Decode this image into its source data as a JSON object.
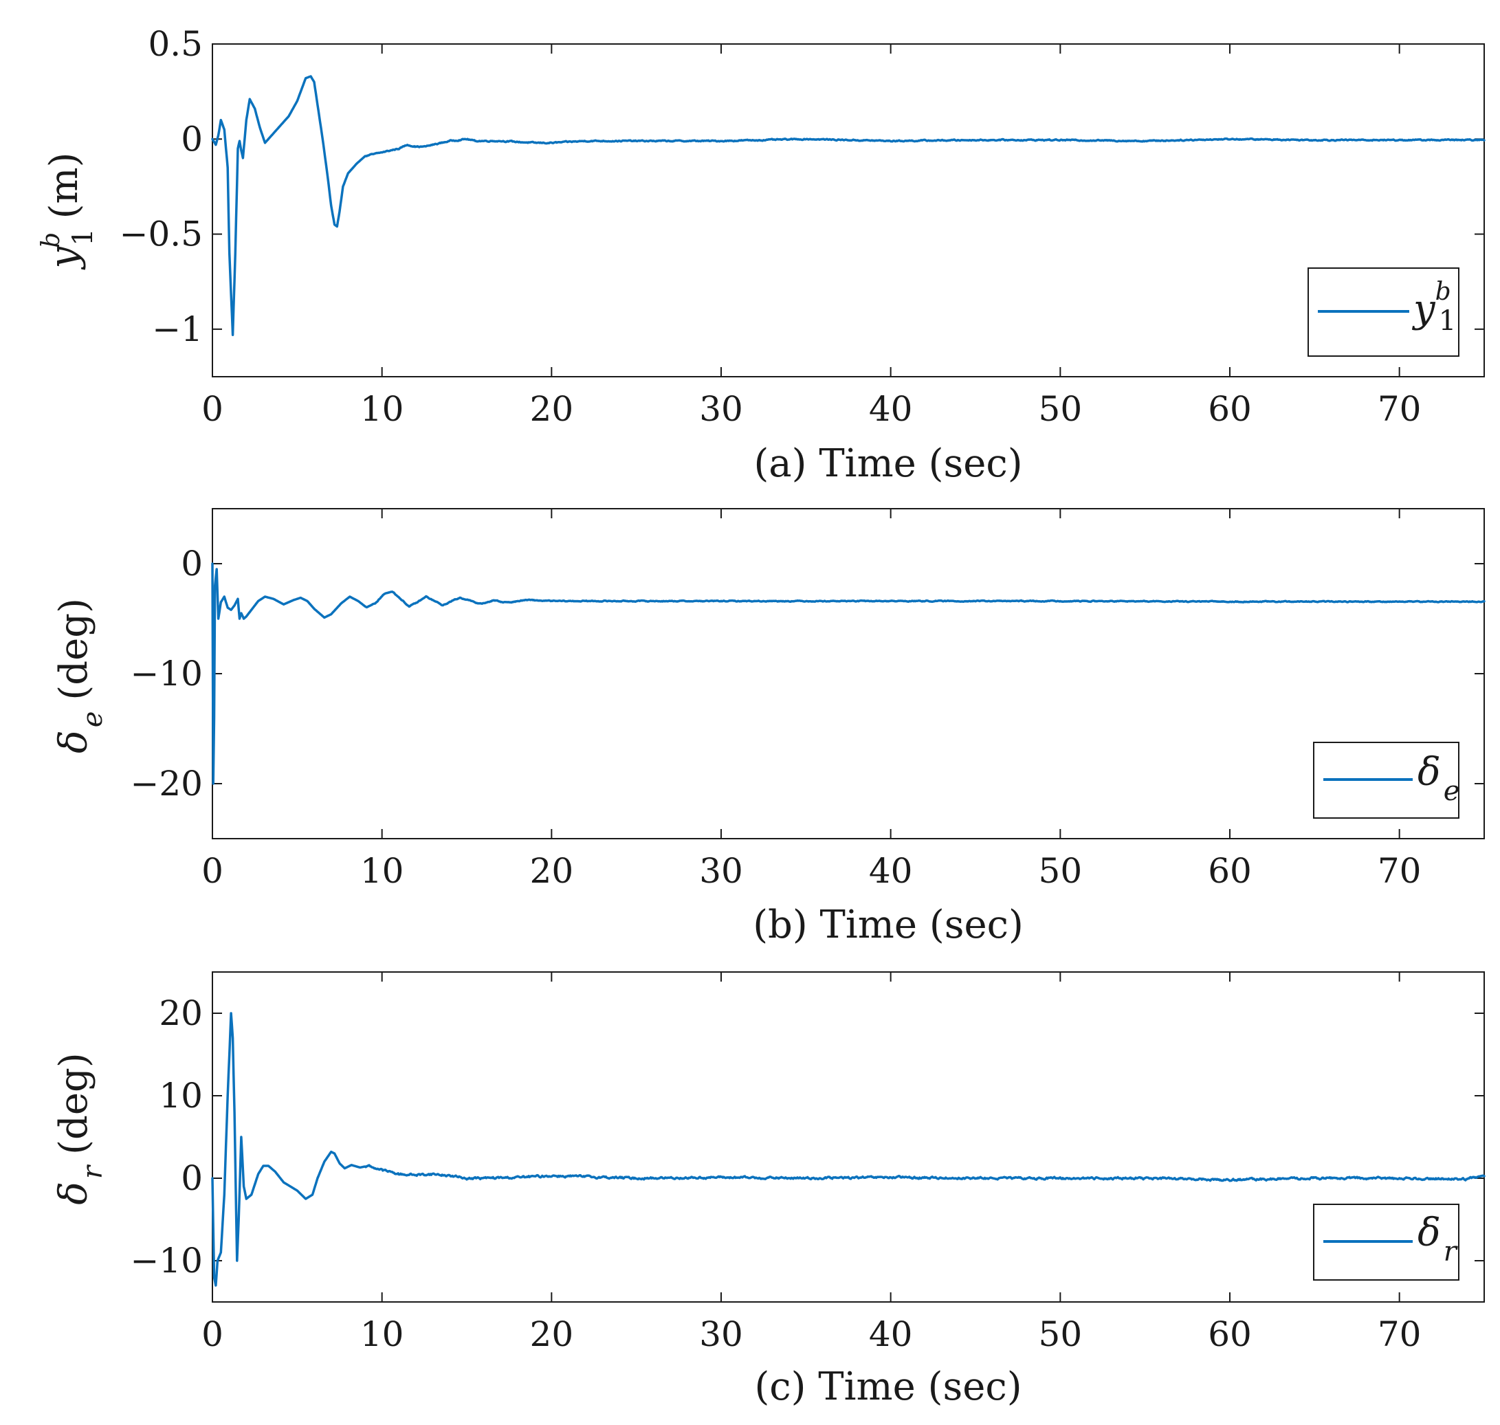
{
  "chart_data": [
    {
      "type": "line",
      "panel": "a",
      "xlabel": "(a) Time (sec)",
      "ylabel": {
        "symbol": "y",
        "superscript": "b",
        "subscript": "1",
        "unit": "(m)"
      },
      "xlim": [
        0,
        75
      ],
      "ylim": [
        -1.25,
        0.5
      ],
      "xticks": [
        0,
        10,
        20,
        30,
        40,
        50,
        60,
        70
      ],
      "xtick_labels": [
        "0",
        "10",
        "20",
        "30",
        "40",
        "50",
        "60",
        "70"
      ],
      "yticks": [
        0.5,
        0,
        -0.5,
        -1
      ],
      "ytick_labels": [
        "0.5",
        "0",
        "−0.5",
        "−1"
      ],
      "grid": false,
      "legend": {
        "position": "right",
        "symbol": "y",
        "superscript": "b",
        "subscript": "1"
      },
      "series": [
        {
          "name": "y1b",
          "color": "#0b72bd",
          "noise_amplitude": 0.006,
          "x": [
            0,
            0.2,
            0.35,
            0.5,
            0.7,
            0.9,
            1.0,
            1.2,
            1.35,
            1.5,
            1.6,
            1.7,
            1.8,
            2.0,
            2.2,
            2.5,
            2.8,
            3.1,
            3.5,
            4.0,
            4.5,
            5.0,
            5.5,
            5.8,
            6.0,
            6.2,
            6.5,
            6.8,
            7.0,
            7.2,
            7.35,
            7.5,
            7.7,
            8.0,
            8.5,
            9.0,
            10.0,
            11.0,
            11.5,
            12.0,
            12.5,
            13.0,
            14.0,
            15.0,
            15.5,
            17.0,
            19.0,
            20.0,
            22.0,
            25.0,
            30.0,
            35.0,
            40.0,
            45.0,
            50.0,
            55.0,
            60.0,
            65.0,
            70.0,
            73.0,
            75.0
          ],
          "y": [
            0.0,
            -0.03,
            0.02,
            0.1,
            0.05,
            -0.15,
            -0.6,
            -1.03,
            -0.6,
            -0.05,
            -0.01,
            -0.06,
            -0.1,
            0.1,
            0.21,
            0.16,
            0.06,
            -0.02,
            0.02,
            0.07,
            0.12,
            0.2,
            0.32,
            0.33,
            0.3,
            0.18,
            0.0,
            -0.2,
            -0.35,
            -0.45,
            -0.46,
            -0.38,
            -0.25,
            -0.18,
            -0.13,
            -0.09,
            -0.07,
            -0.05,
            -0.03,
            -0.04,
            -0.04,
            -0.03,
            -0.01,
            0.0,
            -0.01,
            -0.01,
            -0.02,
            -0.02,
            -0.01,
            -0.01,
            -0.01,
            0.0,
            -0.01,
            -0.005,
            -0.005,
            -0.01,
            0.0,
            -0.005,
            -0.005,
            -0.005,
            -0.005
          ]
        }
      ]
    },
    {
      "type": "line",
      "panel": "b",
      "xlabel": "(b) Time (sec)",
      "ylabel": {
        "symbol": "δ",
        "subscript": "e",
        "unit": "(deg)"
      },
      "xlim": [
        0,
        75
      ],
      "ylim": [
        -25,
        5
      ],
      "xticks": [
        0,
        10,
        20,
        30,
        40,
        50,
        60,
        70
      ],
      "xtick_labels": [
        "0",
        "10",
        "20",
        "30",
        "40",
        "50",
        "60",
        "70"
      ],
      "yticks": [
        0,
        -10,
        -20
      ],
      "ytick_labels": [
        "0",
        "−10",
        "−20"
      ],
      "grid": false,
      "legend": {
        "position": "bottom-right",
        "symbol": "δ",
        "subscript": "e"
      },
      "series": [
        {
          "name": "delta_e",
          "color": "#0b72bd",
          "noise_amplitude": 0.08,
          "x": [
            0,
            0.05,
            0.1,
            0.15,
            0.25,
            0.35,
            0.5,
            0.7,
            0.9,
            1.1,
            1.3,
            1.5,
            1.6,
            1.7,
            1.85,
            2.0,
            2.3,
            2.7,
            3.1,
            3.6,
            4.2,
            4.8,
            5.2,
            5.6,
            6.0,
            6.6,
            7.0,
            7.6,
            8.1,
            8.6,
            9.1,
            9.6,
            10.1,
            10.6,
            11.1,
            11.6,
            12.1,
            12.6,
            13.1,
            13.6,
            14.1,
            14.6,
            15.1,
            15.6,
            16.1,
            16.6,
            17.1,
            17.6,
            18.5,
            20.0,
            25.0,
            30.0,
            40.0,
            50.0,
            60.0,
            70.0,
            75.0
          ],
          "y": [
            0,
            -20,
            -14,
            -2,
            -0.5,
            -5,
            -3.5,
            -3,
            -4,
            -4.2,
            -3.8,
            -3.2,
            -5,
            -4.5,
            -5,
            -4.8,
            -4.2,
            -3.4,
            -3.0,
            -3.2,
            -3.7,
            -3.3,
            -3.1,
            -3.4,
            -4.1,
            -4.9,
            -4.6,
            -3.6,
            -3.0,
            -3.4,
            -4.0,
            -3.6,
            -2.8,
            -2.5,
            -3.2,
            -3.9,
            -3.5,
            -3.0,
            -3.4,
            -3.8,
            -3.4,
            -3.1,
            -3.3,
            -3.6,
            -3.6,
            -3.3,
            -3.5,
            -3.5,
            -3.3,
            -3.4,
            -3.4,
            -3.4,
            -3.4,
            -3.4,
            -3.45,
            -3.45,
            -3.45
          ]
        }
      ]
    },
    {
      "type": "line",
      "panel": "c",
      "xlabel": "(c) Time (sec)",
      "ylabel": {
        "symbol": "δ",
        "subscript": "r",
        "unit": "(deg)"
      },
      "xlim": [
        0,
        75
      ],
      "ylim": [
        -15,
        25
      ],
      "xticks": [
        0,
        10,
        20,
        30,
        40,
        50,
        60,
        70
      ],
      "xtick_labels": [
        "0",
        "10",
        "20",
        "30",
        "40",
        "50",
        "60",
        "70"
      ],
      "yticks": [
        20,
        10,
        0,
        -10
      ],
      "ytick_labels": [
        "20",
        "10",
        "0",
        "−10"
      ],
      "grid": false,
      "legend": {
        "position": "bottom-right",
        "symbol": "δ",
        "subscript": "r"
      },
      "series": [
        {
          "name": "delta_r",
          "color": "#0b72bd",
          "noise_amplitude": 0.25,
          "x": [
            0,
            0.1,
            0.2,
            0.3,
            0.5,
            0.7,
            0.9,
            1.1,
            1.2,
            1.3,
            1.45,
            1.55,
            1.7,
            1.85,
            2.0,
            2.3,
            2.7,
            3.0,
            3.3,
            3.7,
            4.2,
            4.6,
            5.0,
            5.5,
            5.9,
            6.2,
            6.6,
            7.0,
            7.2,
            7.5,
            7.8,
            8.2,
            8.7,
            9.2,
            10.0,
            11.0,
            12.0,
            13.0,
            14.0,
            15.0,
            16.0,
            18.0,
            20.0,
            25.0,
            30.0,
            35.0,
            40.0,
            45.0,
            50.0,
            55.0,
            60.0,
            65.0,
            70.0,
            74.0,
            75.0
          ],
          "y": [
            0,
            -12,
            -13,
            -10,
            -9,
            -2,
            10,
            20,
            17,
            8,
            -10,
            -5,
            5,
            -1,
            -2.5,
            -2,
            0.5,
            1.5,
            1.5,
            0.8,
            -0.5,
            -1,
            -1.5,
            -2.5,
            -2,
            0,
            2,
            3.2,
            3,
            1.8,
            1.2,
            1.6,
            1.3,
            1.5,
            1.0,
            0.5,
            0.4,
            0.5,
            0.3,
            0,
            0.0,
            0.1,
            0.3,
            0.0,
            0.1,
            0.0,
            0.1,
            0.0,
            0.0,
            0.0,
            -0.2,
            0.0,
            0.0,
            -0.1,
            0.3
          ]
        }
      ]
    }
  ]
}
